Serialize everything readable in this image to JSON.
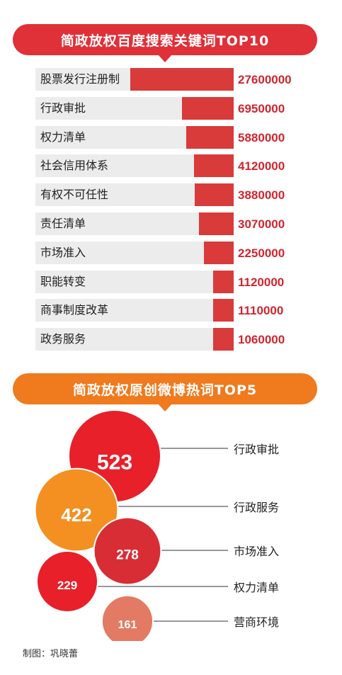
{
  "chart_data": [
    {
      "type": "bar",
      "title": "简政放权百度搜索关键词TOP10",
      "categories": [
        "股票发行注册制",
        "行政审批",
        "权力清单",
        "社会信用体系",
        "有权不可任性",
        "责任清单",
        "市场准入",
        "职能转变",
        "商事制度改革",
        "政务服务"
      ],
      "values": [
        27600000,
        6950000,
        5880000,
        4120000,
        3880000,
        3070000,
        2250000,
        1120000,
        1110000,
        1060000
      ],
      "value_labels": [
        "27600000",
        "6950000",
        "5880000",
        "4120000",
        "3880000",
        "3070000",
        "2250000",
        "1120000",
        "1110000",
        "1060000"
      ],
      "bar_color": "#d93a3a",
      "banner_color": "#e03038"
    },
    {
      "type": "bubble",
      "title": "简政放权原创微博热词TOP5",
      "categories": [
        "行政审批",
        "行政服务",
        "市场准入",
        "权力清单",
        "营商环境"
      ],
      "values": [
        523,
        422,
        278,
        229,
        161
      ],
      "value_labels": [
        "523",
        "422",
        "278",
        "229",
        "161"
      ],
      "colors": [
        "#e8202a",
        "#f39021",
        "#d82d35",
        "#e8202a",
        "#e37a63"
      ],
      "banner_color": "#f07a1e"
    }
  ],
  "credit": "制图：巩晓蕾"
}
